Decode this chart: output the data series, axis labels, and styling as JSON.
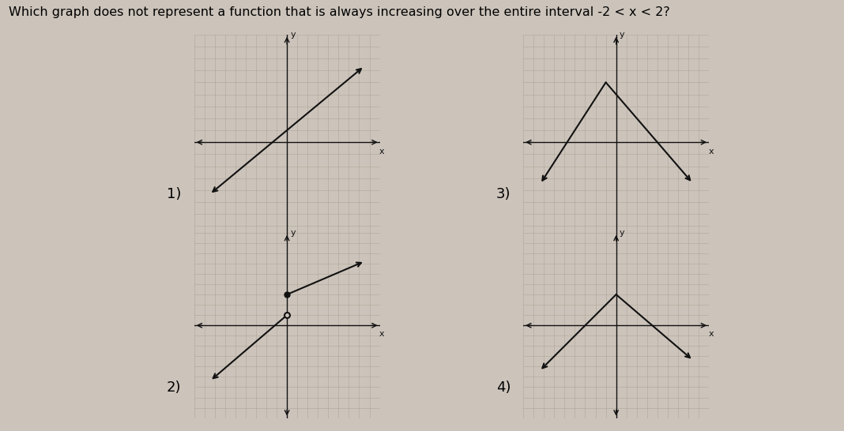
{
  "title": "Which graph does not represent a function that is always increasing over the entire interval -2 < x < 2?",
  "title_fontsize": 11.5,
  "background_color": "#ccc4bb",
  "grid_color": "#aaa090",
  "axis_color": "#111111",
  "line_color": "#111111",
  "label_fontsize": 13,
  "graphs": [
    {
      "label": "1)",
      "segments": [
        {
          "x": [
            -3.5,
            3.5
          ],
          "y": [
            -2.0,
            3.0
          ],
          "arrow_start": true,
          "arrow_end": true
        }
      ]
    },
    {
      "label": "2)",
      "segments": [
        {
          "x": [
            -3.5,
            0
          ],
          "y": [
            -2.5,
            0.5
          ],
          "arrow_start": true,
          "arrow_end": false
        },
        {
          "x": [
            0,
            3.5
          ],
          "y": [
            1.5,
            3.0
          ],
          "arrow_start": false,
          "arrow_end": true
        }
      ],
      "open_dot": [
        0,
        0.5
      ],
      "closed_dot": [
        0,
        1.5
      ]
    },
    {
      "label": "3)",
      "segments": [
        {
          "x": [
            -3.5,
            -0.5
          ],
          "y": [
            -1.5,
            2.5
          ],
          "arrow_start": true,
          "arrow_end": false
        },
        {
          "x": [
            -0.5,
            3.5
          ],
          "y": [
            2.5,
            -1.5
          ],
          "arrow_start": false,
          "arrow_end": true
        }
      ]
    },
    {
      "label": "4)",
      "segments": [
        {
          "x": [
            -3.5,
            0
          ],
          "y": [
            -2.0,
            1.5
          ],
          "arrow_start": true,
          "arrow_end": false
        },
        {
          "x": [
            0,
            3.5
          ],
          "y": [
            1.5,
            -1.5
          ],
          "arrow_start": false,
          "arrow_end": true
        }
      ]
    }
  ]
}
